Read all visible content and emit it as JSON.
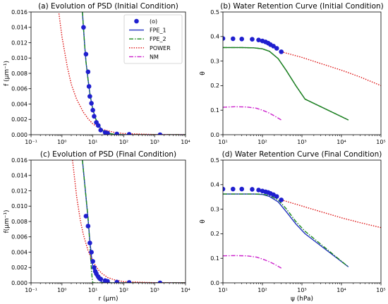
{
  "chart_data": [
    {
      "type": "line",
      "title": "(a) Evolution of PSD (Initial Condition)",
      "xlabel": "",
      "ylabel": "f (μm⁻¹)",
      "xscale": "log",
      "xlim": [
        0.1,
        10000
      ],
      "ylim": [
        0,
        0.016
      ],
      "xticks": [
        0.1,
        1,
        10,
        100,
        1000,
        10000
      ],
      "xtick_labels": [
        "10⁻¹",
        "10⁰",
        "10¹",
        "10²",
        "10³",
        "10⁴"
      ],
      "yticks": [
        0,
        0.002,
        0.004,
        0.006,
        0.008,
        0.01,
        0.012,
        0.014,
        0.016
      ],
      "ytick_labels": [
        "0.000",
        "0.002",
        "0.004",
        "0.006",
        "0.008",
        "0.010",
        "0.012",
        "0.014",
        "0.016"
      ],
      "legend": {
        "placement": "top-right",
        "entries": [
          {
            "label": "(o)",
            "color": "#1f1fcf",
            "style": "marker"
          },
          {
            "label": "FPE_1",
            "color": "#1f2fbf",
            "style": "solid"
          },
          {
            "label": "FPE_2",
            "color": "#1a8a1a",
            "style": "dashdot"
          },
          {
            "label": "POWER",
            "color": "#dd1111",
            "style": "dotted"
          },
          {
            "label": "NM",
            "color": "#cc22cc",
            "style": "dashdot"
          }
        ]
      },
      "series": [
        {
          "color": "#1f1fcf",
          "style": "marker",
          "x": [
            5,
            6,
            7,
            7.5,
            8,
            9,
            10,
            11,
            13,
            15,
            18,
            25,
            30,
            60,
            150,
            1500
          ],
          "y": [
            0.014,
            0.0105,
            0.0082,
            0.0063,
            0.005,
            0.0041,
            0.0032,
            0.0024,
            0.0016,
            0.0012,
            0.0006,
            0.0003,
            0.0002,
            0.0001,
            5e-05,
            0.0
          ]
        },
        {
          "color": "#1f2fbf",
          "style": "solid",
          "x": [
            4.6,
            5,
            5.5,
            6,
            7,
            8,
            9,
            10,
            12,
            15,
            20,
            30,
            50,
            100,
            1000,
            10000
          ],
          "y": [
            0.016,
            0.0138,
            0.0114,
            0.0095,
            0.0072,
            0.0054,
            0.0042,
            0.0033,
            0.0022,
            0.0013,
            0.0006,
            0.0002,
            5e-05,
            0.0,
            0.0,
            0.0
          ]
        },
        {
          "color": "#1a8a1a",
          "style": "dashdot",
          "x": [
            4.6,
            5,
            5.5,
            6,
            7,
            8,
            9,
            10,
            12,
            15,
            20,
            30,
            50,
            100,
            1000,
            10000
          ],
          "y": [
            0.016,
            0.0138,
            0.0114,
            0.0095,
            0.0072,
            0.0054,
            0.0042,
            0.0033,
            0.0022,
            0.0013,
            0.0006,
            0.0002,
            5e-05,
            0.0,
            0.0,
            0.0
          ]
        },
        {
          "color": "#dd1111",
          "style": "dotted",
          "x": [
            0.8,
            1,
            1.5,
            2,
            3,
            5,
            7,
            10,
            20,
            50,
            100,
            1000,
            10000
          ],
          "y": [
            0.0158,
            0.0128,
            0.0088,
            0.0066,
            0.0046,
            0.0029,
            0.0021,
            0.0014,
            0.0007,
            0.0003,
            0.00015,
            2e-05,
            0.0
          ]
        }
      ]
    },
    {
      "type": "line",
      "title": "(b) Water Retention Curve (Initial Condition)",
      "xlabel": "",
      "ylabel": "θ",
      "xscale": "log",
      "xlim": [
        10,
        100000
      ],
      "ylim": [
        0,
        0.5
      ],
      "xticks": [
        10,
        100,
        1000,
        10000,
        100000
      ],
      "xtick_labels": [
        "10¹",
        "10²",
        "10³",
        "10⁴",
        "10⁵"
      ],
      "yticks": [
        0,
        0.1,
        0.2,
        0.3,
        0.4,
        0.5
      ],
      "ytick_labels": [
        "0.0",
        "0.1",
        "0.2",
        "0.3",
        "0.4",
        "0.5"
      ],
      "series": [
        {
          "color": "#1f1fcf",
          "style": "marker",
          "x": [
            10,
            18,
            30,
            55,
            80,
            100,
            120,
            140,
            160,
            190,
            230,
            300
          ],
          "y": [
            0.392,
            0.391,
            0.39,
            0.389,
            0.386,
            0.382,
            0.378,
            0.373,
            0.367,
            0.361,
            0.352,
            0.338
          ]
        },
        {
          "color": "#1a6a2a",
          "style": "solid",
          "x": [
            10,
            30,
            60,
            100,
            150,
            250,
            400,
            700,
            1200,
            15000
          ],
          "y": [
            0.355,
            0.355,
            0.354,
            0.35,
            0.34,
            0.31,
            0.262,
            0.2,
            0.145,
            0.06
          ]
        },
        {
          "color": "#1a8a1a",
          "style": "dashdot",
          "x": [
            10,
            30,
            60,
            100,
            150,
            250,
            400,
            700,
            1200,
            15000
          ],
          "y": [
            0.355,
            0.355,
            0.354,
            0.35,
            0.34,
            0.31,
            0.262,
            0.2,
            0.145,
            0.06
          ]
        },
        {
          "color": "#dd1111",
          "style": "dotted",
          "x": [
            300,
            1000,
            3000,
            10000,
            30000,
            100000
          ],
          "y": [
            0.338,
            0.315,
            0.29,
            0.263,
            0.235,
            0.2
          ]
        },
        {
          "color": "#cc22cc",
          "style": "dashdot",
          "x": [
            10,
            20,
            40,
            70,
            100,
            150,
            200,
            300
          ],
          "y": [
            0.112,
            0.114,
            0.113,
            0.108,
            0.1,
            0.088,
            0.077,
            0.06
          ]
        }
      ]
    },
    {
      "type": "line",
      "title": "(c) Evolution of PSD (Final Condition)",
      "xlabel": "r (μm)",
      "ylabel": "f(μm⁻¹)",
      "xscale": "log",
      "xlim": [
        0.1,
        10000
      ],
      "ylim": [
        0,
        0.016
      ],
      "xticks": [
        0.1,
        1,
        10,
        100,
        1000,
        10000
      ],
      "xtick_labels": [
        "10⁻¹",
        "10⁰",
        "10¹",
        "10²",
        "10³",
        "10⁴"
      ],
      "yticks": [
        0,
        0.002,
        0.004,
        0.006,
        0.008,
        0.01,
        0.012,
        0.014,
        0.016
      ],
      "ytick_labels": [
        "0.000",
        "0.002",
        "0.004",
        "0.006",
        "0.008",
        "0.010",
        "0.012",
        "0.014",
        "0.016"
      ],
      "series": [
        {
          "color": "#1f1fcf",
          "style": "marker",
          "x": [
            6,
            7,
            8,
            9,
            10,
            11,
            12,
            13,
            15,
            18,
            25,
            30,
            60,
            150,
            1500
          ],
          "y": [
            0.0087,
            0.0074,
            0.0052,
            0.004,
            0.0028,
            0.002,
            0.0015,
            0.0012,
            0.0008,
            0.0005,
            0.0003,
            0.0002,
            0.0001,
            5e-05,
            0.0
          ]
        },
        {
          "color": "#1f2fbf",
          "style": "solid",
          "x": [
            4.6,
            5,
            6,
            7,
            8,
            9,
            10,
            12,
            15,
            20,
            30,
            50,
            100,
            1000,
            10000
          ],
          "y": [
            0.016,
            0.0145,
            0.0112,
            0.0083,
            0.0055,
            0.0035,
            0.0021,
            0.001,
            0.0004,
            0.0001,
            0.0,
            0.0,
            0.0,
            0.0,
            0.0
          ]
        },
        {
          "color": "#1a8a1a",
          "style": "dashdot",
          "x": [
            4.6,
            5,
            6,
            7,
            7.5,
            8,
            8.5,
            9,
            9.5,
            10,
            100,
            10000
          ],
          "y": [
            0.016,
            0.0145,
            0.0112,
            0.0085,
            0.0068,
            0.005,
            0.0032,
            0.0017,
            0.0006,
            0.0,
            0.0,
            0.0
          ]
        },
        {
          "color": "#dd1111",
          "style": "dotted",
          "x": [
            2.2,
            3,
            4,
            5,
            7,
            10,
            15,
            20,
            30,
            50,
            100,
            1000,
            10000
          ],
          "y": [
            0.016,
            0.0112,
            0.008,
            0.0062,
            0.0042,
            0.0028,
            0.0017,
            0.0012,
            0.0007,
            0.0004,
            0.00015,
            2e-05,
            0.0
          ]
        }
      ]
    },
    {
      "type": "line",
      "title": "(d) Water Retention Curve (Final Condition)",
      "xlabel": "ψ (hPa)",
      "ylabel": "θ",
      "xscale": "log",
      "xlim": [
        10,
        100000
      ],
      "ylim": [
        0,
        0.5
      ],
      "xticks": [
        10,
        100,
        1000,
        10000,
        100000
      ],
      "xtick_labels": [
        "10¹",
        "10²",
        "10³",
        "10⁴",
        "10⁵"
      ],
      "yticks": [
        0,
        0.1,
        0.2,
        0.3,
        0.4,
        0.5
      ],
      "ytick_labels": [
        "0.0",
        "0.1",
        "0.2",
        "0.3",
        "0.4",
        "0.5"
      ],
      "series": [
        {
          "color": "#1f1fcf",
          "style": "marker",
          "x": [
            10,
            18,
            30,
            55,
            80,
            100,
            120,
            140,
            160,
            190,
            230,
            300
          ],
          "y": [
            0.382,
            0.382,
            0.382,
            0.381,
            0.378,
            0.374,
            0.371,
            0.368,
            0.364,
            0.359,
            0.352,
            0.338
          ]
        },
        {
          "color": "#1f2fbf",
          "style": "solid",
          "x": [
            10,
            60,
            100,
            150,
            250,
            400,
            700,
            1200,
            15000
          ],
          "y": [
            0.362,
            0.362,
            0.36,
            0.352,
            0.33,
            0.29,
            0.24,
            0.2,
            0.065
          ]
        },
        {
          "color": "#1a8a1a",
          "style": "dashdot",
          "x": [
            10,
            60,
            100,
            150,
            250,
            400,
            700,
            1200,
            15000
          ],
          "y": [
            0.362,
            0.362,
            0.361,
            0.356,
            0.338,
            0.302,
            0.25,
            0.21,
            0.065
          ]
        },
        {
          "color": "#dd1111",
          "style": "dotted",
          "x": [
            300,
            1000,
            3000,
            10000,
            30000,
            100000
          ],
          "y": [
            0.338,
            0.313,
            0.29,
            0.265,
            0.245,
            0.225
          ]
        },
        {
          "color": "#cc22cc",
          "style": "dashdot",
          "x": [
            10,
            20,
            40,
            70,
            100,
            150,
            200,
            300
          ],
          "y": [
            0.11,
            0.111,
            0.11,
            0.105,
            0.097,
            0.086,
            0.076,
            0.06
          ]
        }
      ]
    }
  ]
}
